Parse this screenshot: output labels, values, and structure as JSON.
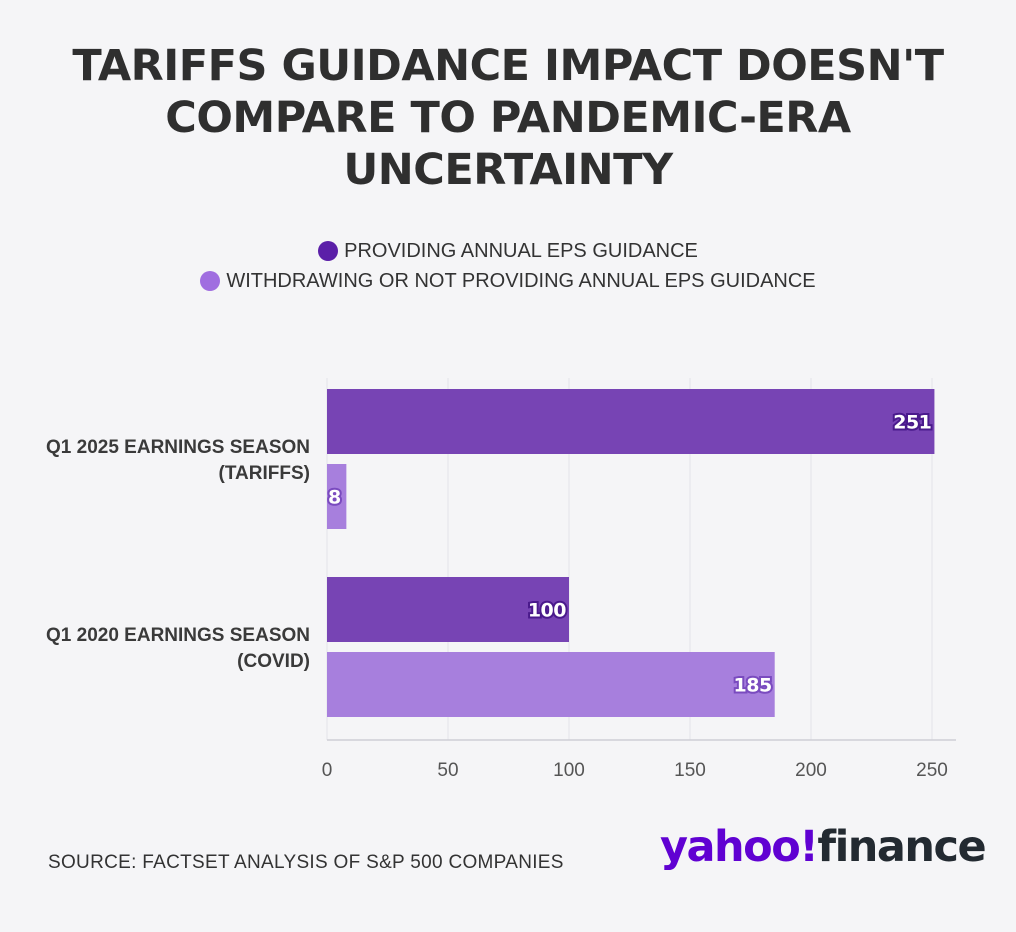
{
  "chart_data": {
    "type": "bar",
    "orientation": "horizontal",
    "title_lines": [
      "TARIFFS GUIDANCE IMPACT DOESN'T",
      "COMPARE TO PANDEMIC-ERA",
      "UNCERTAINTY"
    ],
    "categories": [
      {
        "lines": [
          "Q1 2025 EARNINGS SEASON",
          "(TARIFFS)"
        ]
      },
      {
        "lines": [
          "Q1 2020 EARNINGS SEASON",
          "(COVID)"
        ]
      }
    ],
    "series": [
      {
        "name": "PROVIDING ANNUAL EPS GUIDANCE",
        "color": "#7744b4",
        "values": [
          251,
          100
        ]
      },
      {
        "name": "WITHDRAWING OR NOT PROVIDING ANNUAL EPS GUIDANCE",
        "color": "#a77fdd",
        "values": [
          8,
          185
        ]
      }
    ],
    "xlim": [
      0,
      260
    ],
    "xticks": [
      "0",
      "50",
      "100",
      "150",
      "200",
      "250"
    ],
    "xtick_values": [
      0,
      50,
      100,
      150,
      200,
      250
    ],
    "grid": true,
    "legend_position": "top-center",
    "data_labels": true
  },
  "legend_colors": [
    "#5b1fa8",
    "#a06ee0"
  ],
  "source": "SOURCE: FACTSET ANALYSIS OF S&P 500 COMPANIES",
  "logo": {
    "part1": "yahoo!",
    "part2": "finance"
  }
}
